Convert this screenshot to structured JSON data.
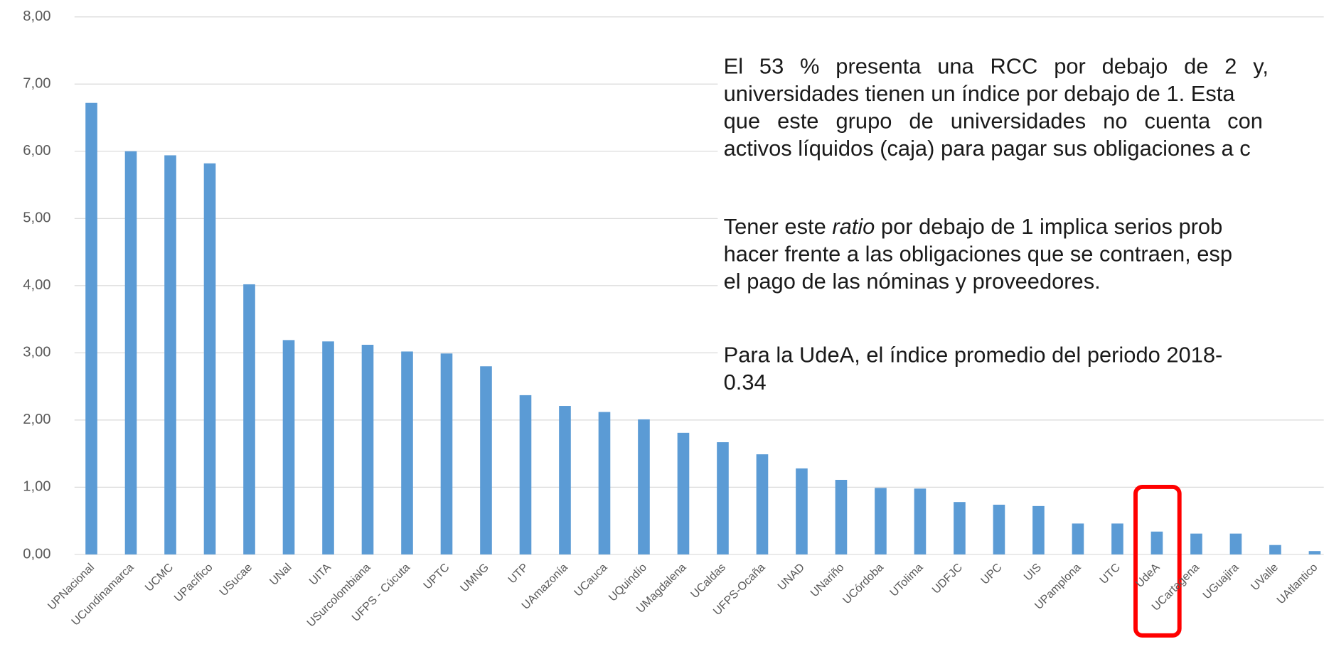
{
  "chart_data": {
    "type": "bar",
    "categories": [
      "UPNacional",
      "UCundinamarca",
      "UCMC",
      "UPacífico",
      "USucae",
      "UNal",
      "UITA",
      "USurcolombiana",
      "UFPS - Cúcuta",
      "UPTC",
      "UMNG",
      "UTP",
      "UAmazonía",
      "UCauca",
      "UQuindío",
      "UMagdalena",
      "UCaldas",
      "UFPS-Ocaña",
      "UNAD",
      "UNariño",
      "UCórdoba",
      "UTolima",
      "UDFJC",
      "UPC",
      "UIS",
      "UPamplona",
      "UTC",
      "UdeA",
      "UCartagena",
      "UGuajira",
      "UValle",
      "UAtlantico"
    ],
    "values": [
      6.72,
      6.0,
      5.94,
      5.82,
      4.02,
      3.19,
      3.17,
      3.12,
      3.02,
      2.99,
      2.8,
      2.37,
      2.21,
      2.12,
      2.01,
      1.81,
      1.67,
      1.49,
      1.28,
      1.11,
      0.99,
      0.98,
      0.78,
      0.74,
      0.72,
      0.46,
      0.46,
      0.34,
      0.31,
      0.31,
      0.14,
      0.05
    ],
    "color": "#5b9bd5",
    "ylim": [
      0,
      8
    ],
    "yticks": [
      {
        "value": 0,
        "label": "0,00"
      },
      {
        "value": 1,
        "label": "1,00"
      },
      {
        "value": 2,
        "label": "2,00"
      },
      {
        "value": 3,
        "label": "3,00"
      },
      {
        "value": 4,
        "label": "4,00"
      },
      {
        "value": 5,
        "label": "5,00"
      },
      {
        "value": 6,
        "label": "6,00"
      },
      {
        "value": 7,
        "label": "7,00"
      },
      {
        "value": 8,
        "label": "8,00"
      }
    ],
    "grid": true,
    "annotation": [
      [
        [
          "El 53 % presenta una RCC por debajo de 2 y,"
        ],
        [
          "universidades tienen un índice por debajo de 1. Esta"
        ],
        [
          "que este grupo de universidades no cuenta con"
        ],
        [
          "activos líquidos (caja) para pagar sus obligaciones a c"
        ]
      ],
      [
        [
          "Tener este ",
          "ratio",
          " por debajo de 1 implica serios prob"
        ],
        [
          "hacer frente a las obligaciones que se contraen, esp"
        ],
        [
          "el pago de las nóminas y proveedores."
        ]
      ],
      [
        [
          "Para la UdeA, el índice promedio del periodo 2018-"
        ],
        [
          "0.34"
        ]
      ]
    ]
  }
}
